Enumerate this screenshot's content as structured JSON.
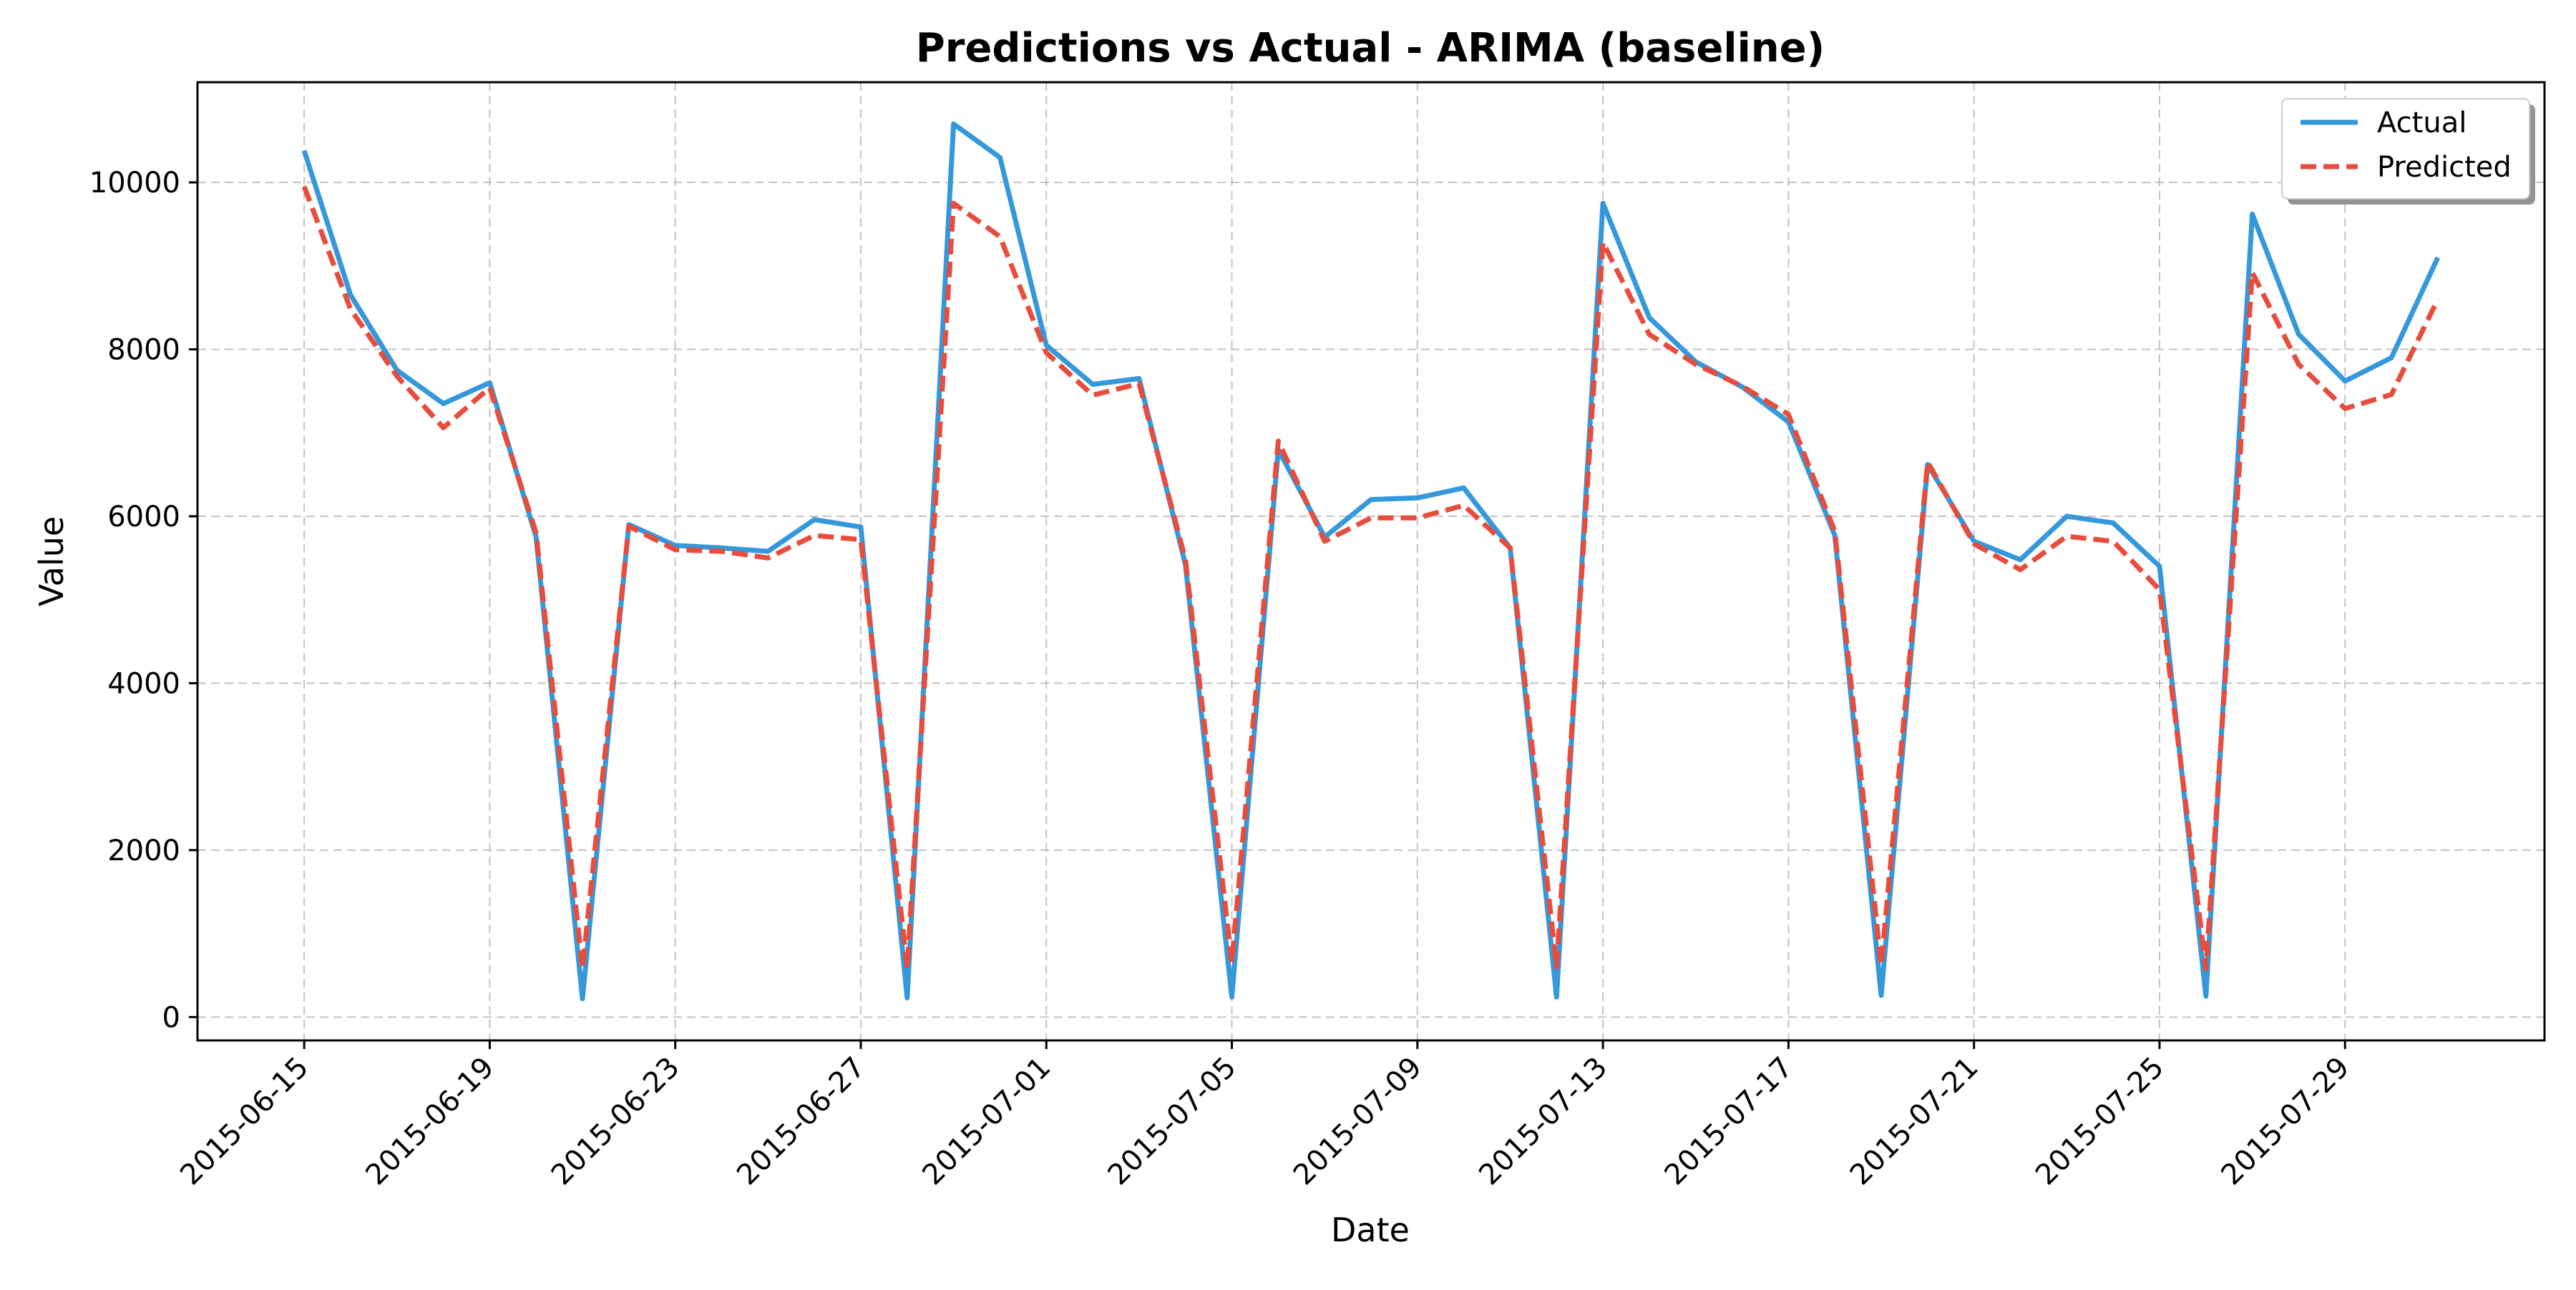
{
  "chart_data": {
    "type": "line",
    "title": "Predictions vs Actual - ARIMA (baseline)",
    "xlabel": "Date",
    "ylabel": "Value",
    "x_start": "2015-06-15",
    "x": [
      "2015-06-15",
      "2015-06-16",
      "2015-06-17",
      "2015-06-18",
      "2015-06-19",
      "2015-06-20",
      "2015-06-21",
      "2015-06-22",
      "2015-06-23",
      "2015-06-24",
      "2015-06-25",
      "2015-06-26",
      "2015-06-27",
      "2015-06-28",
      "2015-06-29",
      "2015-06-30",
      "2015-07-01",
      "2015-07-02",
      "2015-07-03",
      "2015-07-04",
      "2015-07-05",
      "2015-07-06",
      "2015-07-07",
      "2015-07-08",
      "2015-07-09",
      "2015-07-10",
      "2015-07-11",
      "2015-07-12",
      "2015-07-13",
      "2015-07-14",
      "2015-07-15",
      "2015-07-16",
      "2015-07-17",
      "2015-07-18",
      "2015-07-19",
      "2015-07-20",
      "2015-07-21",
      "2015-07-22",
      "2015-07-23",
      "2015-07-24",
      "2015-07-25",
      "2015-07-26",
      "2015-07-27",
      "2015-07-28",
      "2015-07-29",
      "2015-07-30",
      "2015-07-31"
    ],
    "series": [
      {
        "name": "Actual",
        "color": "#3498db",
        "style": "solid",
        "values": [
          10380,
          8650,
          7750,
          7350,
          7600,
          5750,
          220,
          5900,
          5650,
          5620,
          5580,
          5960,
          5870,
          230,
          10700,
          10300,
          8050,
          7580,
          7650,
          5420,
          240,
          6800,
          5750,
          6200,
          6220,
          6340,
          5620,
          240,
          9750,
          8380,
          7850,
          7550,
          7130,
          5770,
          260,
          6620,
          5700,
          5480,
          6000,
          5920,
          5400,
          250,
          9620,
          8180,
          7620,
          7900,
          9100
        ]
      },
      {
        "name": "Predicted",
        "color": "#e74c3c",
        "style": "dashed",
        "values": [
          9950,
          8480,
          7680,
          7060,
          7540,
          5800,
          580,
          5880,
          5600,
          5580,
          5500,
          5770,
          5720,
          580,
          9750,
          9350,
          7960,
          7450,
          7590,
          5480,
          650,
          6900,
          5700,
          5980,
          5980,
          6130,
          5620,
          600,
          9280,
          8180,
          7820,
          7560,
          7220,
          5820,
          620,
          6650,
          5670,
          5360,
          5760,
          5700,
          5120,
          580,
          8920,
          7820,
          7290,
          7460,
          8600
        ]
      }
    ],
    "xticks": [
      "2015-06-15",
      "2015-06-19",
      "2015-06-23",
      "2015-06-27",
      "2015-07-01",
      "2015-07-05",
      "2015-07-09",
      "2015-07-13",
      "2015-07-17",
      "2015-07-21",
      "2015-07-25",
      "2015-07-29"
    ],
    "yticks": [
      0,
      2000,
      4000,
      6000,
      8000,
      10000
    ],
    "ylim": [
      -280,
      11200
    ],
    "xlim_days": [
      -2.3,
      48.3
    ],
    "grid": true,
    "legend_position": "top-right",
    "background": "#ffffff",
    "grid_color": "#b0b0b0"
  }
}
